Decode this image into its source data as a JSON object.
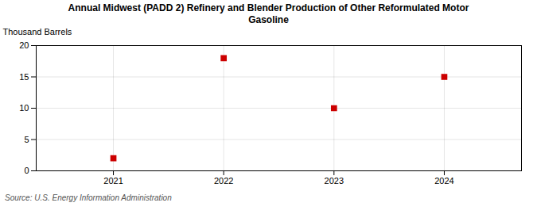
{
  "chart_data": {
    "type": "scatter",
    "title": "Annual Midwest (PADD 2) Refinery and Blender Production of Other Reformulated Motor\nGasoline",
    "ylabel": "Thousand Barrels",
    "annotations": [
      "Source: U.S. Energy Information Administration"
    ],
    "x": [
      2021,
      2022,
      2023,
      2024
    ],
    "values": [
      2,
      18,
      10,
      15
    ],
    "color": "#cc0000",
    "marker": "square",
    "xlim": [
      2020.3,
      2024.7
    ],
    "xticks": [
      2021,
      2022,
      2023,
      2024
    ],
    "ylim": [
      0,
      20
    ],
    "yticks": [
      0,
      5,
      10,
      15,
      20
    ],
    "grid": true
  }
}
